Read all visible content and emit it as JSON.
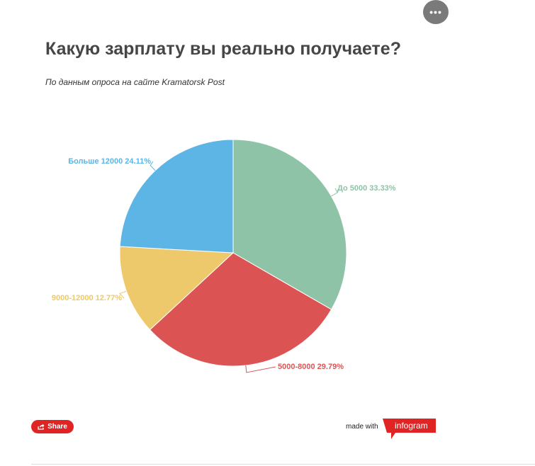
{
  "header": {
    "title": "Какую зарплату вы реально получаете?",
    "subtitle": "По данным опроса на сайте Kramatorsk Post"
  },
  "chart_data": {
    "type": "pie",
    "title": "Какую зарплату вы реально получаете?",
    "subtitle": "По данным опроса на сайте Kramatorsk Post",
    "unit": "%",
    "slices": [
      {
        "label": "До 5000",
        "value": 33.33,
        "color": "#8fc3a7"
      },
      {
        "label": "5000-8000",
        "value": 29.79,
        "color": "#dc5353"
      },
      {
        "label": "9000-12000",
        "value": 12.77,
        "color": "#eec96b"
      },
      {
        "label": "Больше 12000",
        "value": 24.11,
        "color": "#5cb5e4"
      }
    ]
  },
  "footer": {
    "share_label": "Share",
    "made_with": "made with",
    "brand": "infogram",
    "brand_color": "#e02424"
  },
  "icons": {
    "more": "more-options-icon",
    "share": "share-icon"
  }
}
